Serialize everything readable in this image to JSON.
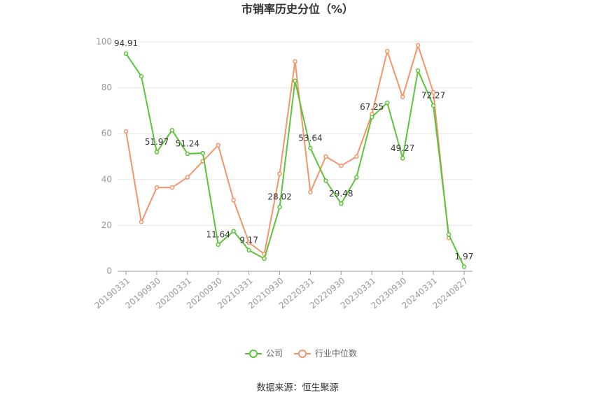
{
  "chart_data": {
    "type": "line",
    "title": "市销率历史分位（%）",
    "categories": [
      "20190331",
      null,
      "20190930",
      null,
      "20200331",
      null,
      "20200930",
      null,
      "20210331",
      null,
      "20210930",
      null,
      "20220331",
      null,
      "20220930",
      null,
      "20230331",
      null,
      "20230930",
      null,
      "20240331",
      null,
      "20240827"
    ],
    "series": [
      {
        "name": "公司",
        "color": "#5cc43a",
        "values": [
          94.91,
          85,
          51.97,
          61.5,
          51.24,
          51.5,
          11.64,
          17.5,
          9.17,
          5.5,
          28.02,
          83,
          53.64,
          39.5,
          29.48,
          41,
          67.25,
          73.5,
          49.27,
          87.5,
          72.27,
          16,
          1.97
        ],
        "value_labels": [
          "94.91",
          null,
          "51.97",
          null,
          "51.24",
          null,
          "11.64",
          null,
          "9.17",
          null,
          "28.02",
          null,
          "53.64",
          null,
          "29.48",
          null,
          "67.25",
          null,
          "49.27",
          null,
          "72.27",
          null,
          "1.97"
        ]
      },
      {
        "name": "行业中位数",
        "color": "#f4946a",
        "values": [
          61,
          21.5,
          36.5,
          36.5,
          41,
          48,
          55,
          31,
          12.5,
          7.5,
          42.5,
          91.5,
          34.5,
          50,
          46,
          50,
          68.5,
          96,
          76,
          98.5,
          78,
          14.5,
          null
        ]
      }
    ],
    "ylim": [
      0,
      100
    ],
    "yticks": [
      0,
      20,
      40,
      60,
      80,
      100
    ],
    "grid": true,
    "source": "数据来源：恒生聚源"
  }
}
